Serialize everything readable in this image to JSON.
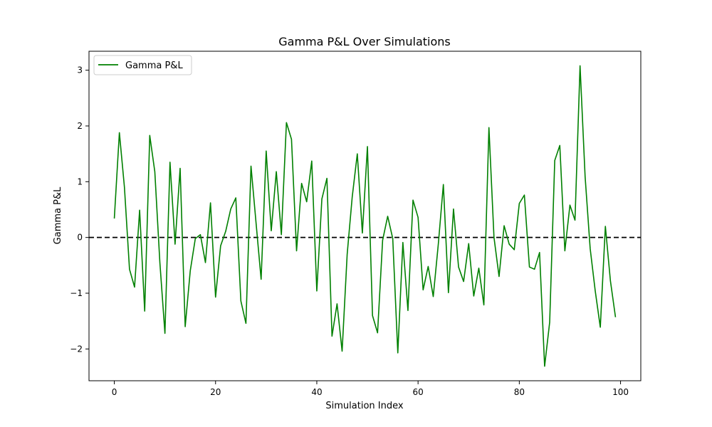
{
  "chart_data": {
    "type": "line",
    "title": "Gamma P&L Over Simulations",
    "xlabel": "Simulation Index",
    "ylabel": "Gamma P&L",
    "xlim": [
      -5,
      104
    ],
    "ylim": [
      -2.57,
      3.34
    ],
    "xticks": [
      0,
      20,
      40,
      60,
      80,
      100
    ],
    "yticks": [
      -2,
      -1,
      0,
      1,
      2,
      3
    ],
    "legend_position": "upper-left",
    "reference_line": {
      "y": 0,
      "style": "dashed",
      "color": "#000000"
    },
    "series": [
      {
        "name": "Gamma P&L",
        "color": "#008000",
        "x": [
          0,
          1,
          2,
          3,
          4,
          5,
          6,
          7,
          8,
          9,
          10,
          11,
          12,
          13,
          14,
          15,
          16,
          17,
          18,
          19,
          20,
          21,
          22,
          23,
          24,
          25,
          26,
          27,
          28,
          29,
          30,
          31,
          32,
          33,
          34,
          35,
          36,
          37,
          38,
          39,
          40,
          41,
          42,
          43,
          44,
          45,
          46,
          47,
          48,
          49,
          50,
          51,
          52,
          53,
          54,
          55,
          56,
          57,
          58,
          59,
          60,
          61,
          62,
          63,
          64,
          65,
          66,
          67,
          68,
          69,
          70,
          71,
          72,
          73,
          74,
          75,
          76,
          77,
          78,
          79,
          80,
          81,
          82,
          83,
          84,
          85,
          86,
          87,
          88,
          89,
          90,
          91,
          92,
          93,
          94,
          95,
          96,
          97,
          98,
          99
        ],
        "y": [
          0.34,
          1.88,
          0.9,
          -0.57,
          -0.89,
          0.49,
          -1.32,
          1.83,
          1.18,
          -0.45,
          -1.72,
          1.35,
          -0.12,
          1.24,
          -1.6,
          -0.6,
          -0.02,
          0.05,
          -0.45,
          0.62,
          -1.07,
          -0.15,
          0.11,
          0.51,
          0.71,
          -1.14,
          -1.54,
          1.28,
          0.26,
          -0.75,
          1.55,
          0.12,
          1.18,
          0.05,
          2.06,
          1.76,
          -0.24,
          0.97,
          0.64,
          1.37,
          -0.96,
          0.69,
          1.06,
          -1.77,
          -1.19,
          -2.04,
          -0.3,
          0.73,
          1.5,
          0.08,
          1.63,
          -1.4,
          -1.71,
          -0.05,
          0.38,
          -0.02,
          -2.07,
          -0.09,
          -1.31,
          0.67,
          0.36,
          -0.94,
          -0.52,
          -1.06,
          -0.12,
          0.95,
          -0.99,
          0.51,
          -0.53,
          -0.79,
          -0.11,
          -1.05,
          -0.55,
          -1.21,
          1.97,
          0.0,
          -0.7,
          0.21,
          -0.12,
          -0.22,
          0.61,
          0.76,
          -0.53,
          -0.57,
          -0.27,
          -2.31,
          -1.52,
          1.38,
          1.65,
          -0.24,
          0.58,
          0.31,
          3.08,
          1.09,
          -0.2,
          -0.96,
          -1.61,
          0.2,
          -0.78,
          -1.43
        ]
      }
    ]
  }
}
